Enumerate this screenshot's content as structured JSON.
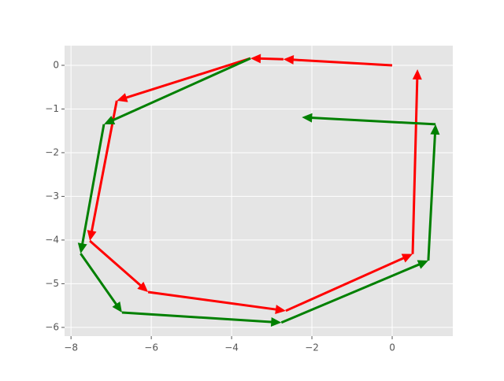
{
  "chart_data": {
    "type": "quiver",
    "xlim": [
      -8.16,
      1.51
    ],
    "ylim": [
      -6.2,
      0.45
    ],
    "xticks": [
      {
        "value": -8,
        "label": "−8"
      },
      {
        "value": -6,
        "label": "−6"
      },
      {
        "value": -4,
        "label": "−4"
      },
      {
        "value": -2,
        "label": "−2"
      },
      0
    ],
    "yticks": [
      0,
      {
        "value": -1,
        "label": "−1"
      },
      {
        "value": -2,
        "label": "−2"
      },
      {
        "value": -3,
        "label": "−3"
      },
      {
        "value": -4,
        "label": "−4"
      },
      {
        "value": -5,
        "label": "−5"
      },
      {
        "value": -6,
        "label": "−6"
      }
    ],
    "grid": true,
    "series": [
      {
        "color": "#ff0000",
        "x_start": [
          0,
          -2.71,
          -3.53,
          -6.86,
          -7.53,
          -6.08,
          -2.65,
          0.51
        ],
        "y_start": [
          0,
          0.14,
          0.16,
          -0.81,
          -4.02,
          -5.19,
          -5.62,
          -4.32
        ],
        "x_end": [
          -2.71,
          -3.53,
          -6.86,
          -7.53,
          -6.08,
          -2.65,
          0.51,
          0.63
        ],
        "y_end": [
          0.14,
          0.16,
          -0.81,
          -4.02,
          -5.19,
          -5.62,
          -4.32,
          -0.09
        ]
      },
      {
        "color": "#008000",
        "x_start": [
          1.08,
          -3.53,
          -7.18,
          -7.76,
          -6.73,
          -2.76,
          0.9
        ],
        "y_start": [
          -1.35,
          0.16,
          -1.35,
          -4.31,
          -5.66,
          -5.89,
          -4.47
        ],
        "x_end": [
          -2.25,
          -7.18,
          -7.76,
          -6.73,
          -2.76,
          0.9,
          1.08
        ],
        "y_end": [
          -1.19,
          -1.35,
          -4.31,
          -5.66,
          -5.89,
          -4.47,
          -1.35
        ]
      }
    ]
  }
}
